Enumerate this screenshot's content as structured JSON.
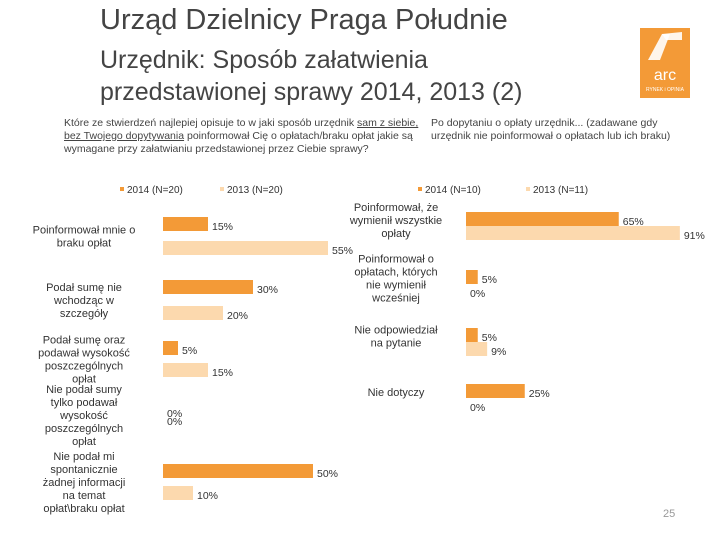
{
  "header": {
    "title": "Urząd Dzielnicy Praga Południe",
    "subtitle": "Urzędnik: Sposób załatwienia przedstawionej sprawy 2014, 2013 (2)"
  },
  "logo": {
    "brand": "arc",
    "tagline": "RYNEK i OPINIA"
  },
  "questions": {
    "left_pre": "Które ze stwierdzeń najlepiej opisuje to w jaki sposób urzędnik ",
    "left_underlined": "sam z siebie, bez Twojego dopytywania",
    "left_post": " poinformował Cię o opłatach/braku opłat jakie są wymagane przy załatwianiu  przedstawionej przez Ciebie sprawy?",
    "right": "Po dopytaniu o opłaty urzędnik... (zadawane gdy urzędnik nie poinformował o opłatach lub ich braku)"
  },
  "page_number": "25",
  "colors": {
    "series_2014": "#F39A37",
    "series_2013": "#FCD9AE"
  },
  "chart_data": [
    {
      "type": "bar",
      "orientation": "horizontal",
      "legend": [
        "2014 (N=20)",
        "2013 (N=20)"
      ],
      "categories": [
        "Poinformował mnie o braku opłat",
        "Podał sumę nie wchodząc w szczegóły",
        "Podał sumę oraz podawał wysokość poszczególnych opłat",
        "Nie podał sumy tylko podawał wysokość poszczególnych opłat",
        "Nie podał mi spontanicznie żadnej informacji na temat opłat\\braku opłat"
      ],
      "series": [
        {
          "name": "2014 (N=20)",
          "values": [
            15,
            30,
            5,
            0,
            50
          ]
        },
        {
          "name": "2013 (N=20)",
          "values": [
            55,
            20,
            15,
            0,
            10
          ]
        }
      ],
      "unit": "%"
    },
    {
      "type": "bar",
      "orientation": "horizontal",
      "legend": [
        "2014 (N=10)",
        "2013 (N=11)"
      ],
      "categories": [
        "Poinformował, że wymienił wszystkie opłaty",
        "Poinformował o opłatach, których nie wymienił wcześniej",
        "Nie odpowiedział na pytanie",
        "Nie dotyczy"
      ],
      "series": [
        {
          "name": "2014 (N=10)",
          "values": [
            65,
            5,
            5,
            25
          ]
        },
        {
          "name": "2013 (N=11)",
          "values": [
            91,
            0,
            9,
            0
          ]
        }
      ],
      "unit": "%"
    }
  ]
}
